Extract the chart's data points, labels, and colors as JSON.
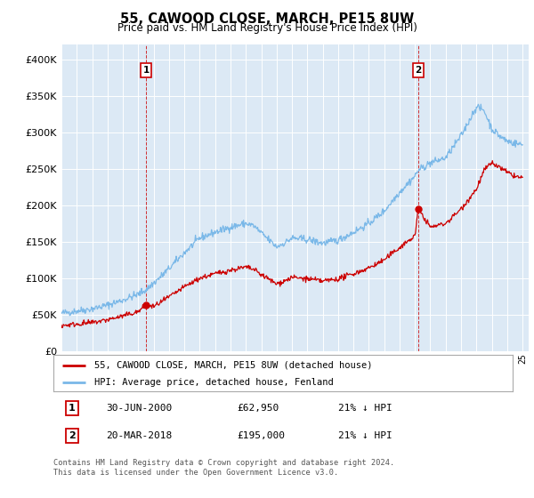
{
  "title": "55, CAWOOD CLOSE, MARCH, PE15 8UW",
  "subtitle": "Price paid vs. HM Land Registry's House Price Index (HPI)",
  "hpi_label": "HPI: Average price, detached house, Fenland",
  "property_label": "55, CAWOOD CLOSE, MARCH, PE15 8UW (detached house)",
  "annotation1_date": "30-JUN-2000",
  "annotation1_price": "£62,950",
  "annotation1_hpi": "21% ↓ HPI",
  "annotation1_year": 2000.5,
  "annotation1_value": 62950,
  "annotation2_date": "20-MAR-2018",
  "annotation2_price": "£195,000",
  "annotation2_hpi": "21% ↓ HPI",
  "annotation2_year": 2018.22,
  "annotation2_value": 195000,
  "ylim_min": 0,
  "ylim_max": 420000,
  "hpi_color": "#7ab8e8",
  "price_color": "#cc0000",
  "vline_color": "#cc0000",
  "plot_bg": "#dce9f5",
  "grid_color": "#ffffff",
  "footer": "Contains HM Land Registry data © Crown copyright and database right 2024.\nThis data is licensed under the Open Government Licence v3.0.",
  "yticks": [
    0,
    50000,
    100000,
    150000,
    200000,
    250000,
    300000,
    350000,
    400000
  ]
}
